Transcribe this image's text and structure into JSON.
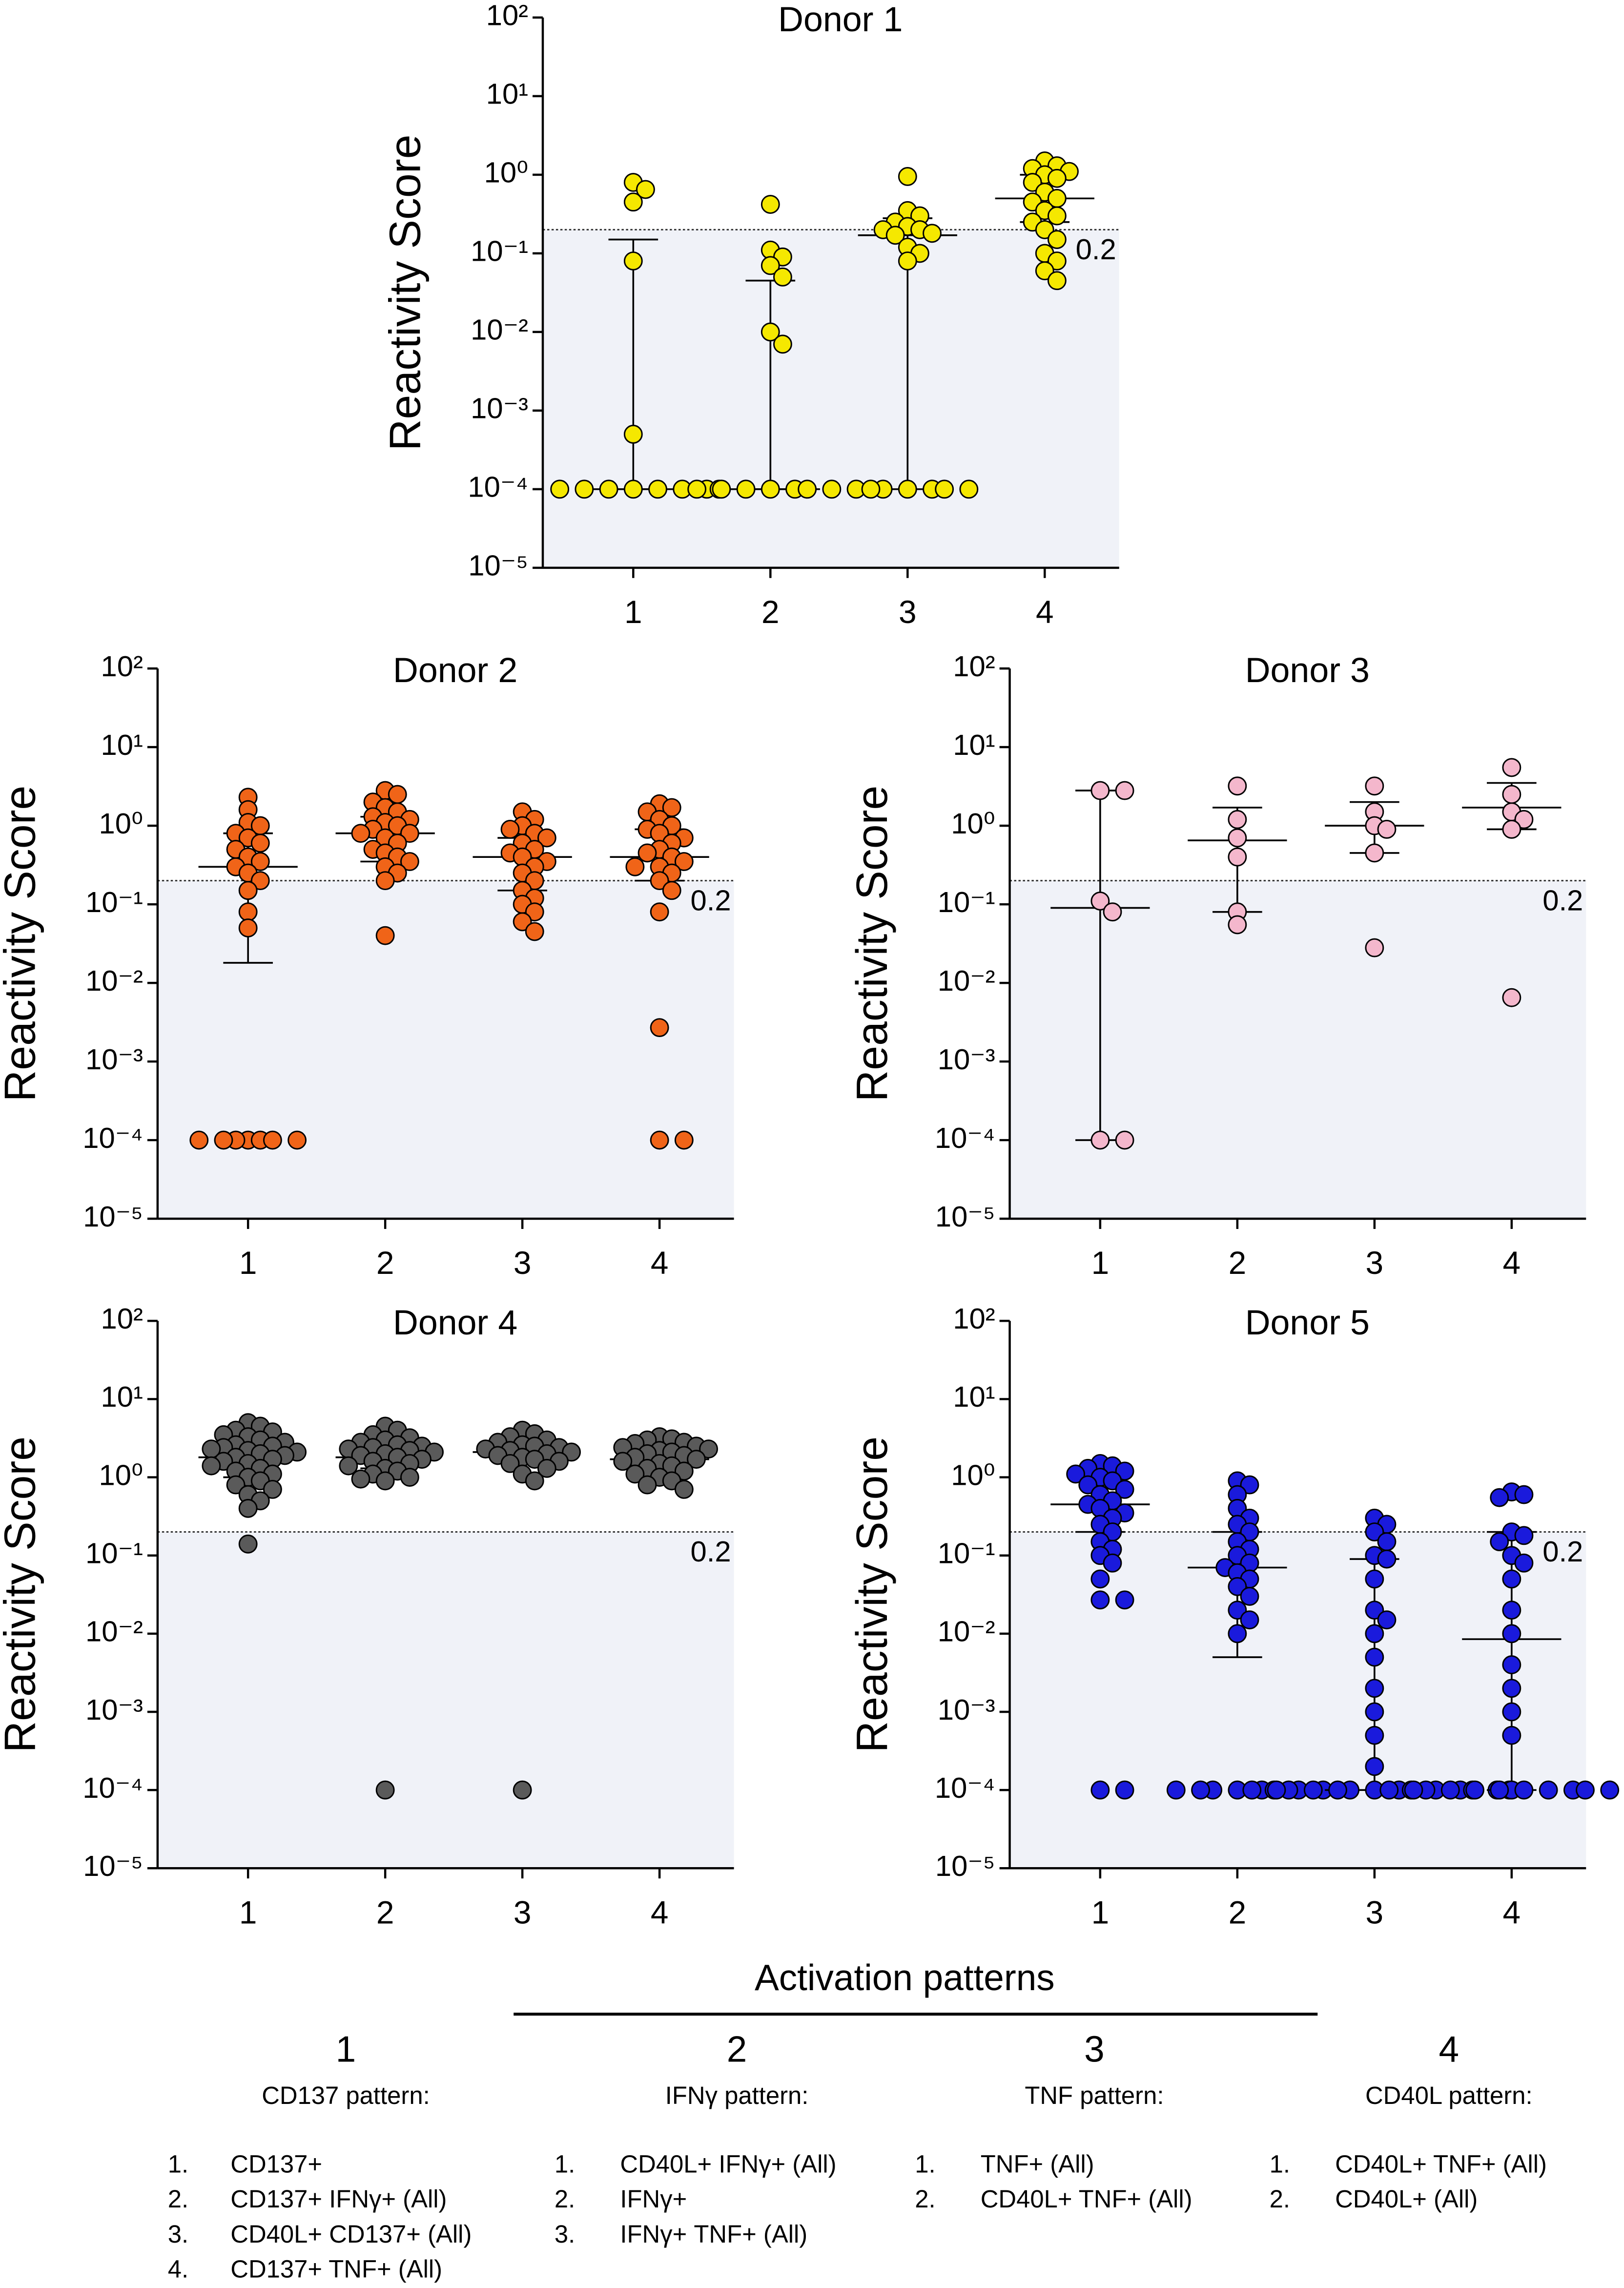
{
  "chart_data": [
    {
      "type": "dotplot",
      "title": "Donor 1",
      "ylabel": "Reactivity Score",
      "log_scale": true,
      "color": "#f5e800",
      "categories": [
        "1",
        "2",
        "3",
        "4"
      ],
      "values": [
        [
          0.8,
          0.65,
          0.45,
          0.08,
          0.0005,
          0.0001,
          0.0001,
          0.0001,
          0.0001,
          0.0001,
          0.0001,
          0.0001,
          0.0001
        ],
        [
          0.42,
          0.11,
          0.09,
          0.07,
          0.05,
          0.01,
          0.007,
          0.0001,
          0.0001,
          0.0001,
          0.0001,
          0.0001,
          0.0001,
          0.0001,
          0.0001
        ],
        [
          0.95,
          0.35,
          0.3,
          0.25,
          0.22,
          0.2,
          0.2,
          0.18,
          0.17,
          0.12,
          0.1,
          0.08,
          0.0001,
          0.0001,
          0.0001,
          0.0001,
          0.0001,
          0.0001
        ],
        [
          1.5,
          1.3,
          1.2,
          1.1,
          1.0,
          0.9,
          0.8,
          0.6,
          0.5,
          0.45,
          0.35,
          0.3,
          0.25,
          0.2,
          0.15,
          0.1,
          0.08,
          0.06,
          0.045
        ]
      ],
      "median": [
        0.0001,
        0.0001,
        0.17,
        0.5
      ],
      "lower": [
        0.0001,
        0.0001,
        0.0001,
        0.25
      ],
      "upper": [
        0.15,
        0.045,
        0.28,
        1.0
      ],
      "threshold": 0.2,
      "ylim": [
        1e-05,
        100
      ],
      "yticks": [
        {
          "value": 1e-05,
          "label": "10⁻⁵"
        },
        {
          "value": 0.0001,
          "label": "10⁻⁴"
        },
        {
          "value": 0.001,
          "label": "10⁻³"
        },
        {
          "value": 0.01,
          "label": "10⁻²"
        },
        {
          "value": 0.1,
          "label": "10⁻¹"
        },
        {
          "value": 1,
          "label": "10⁰"
        },
        {
          "value": 10,
          "label": "10¹"
        },
        {
          "value": 100,
          "label": "10²"
        }
      ]
    },
    {
      "type": "dotplot",
      "title": "Donor 2",
      "ylabel": "Reactivity Score",
      "log_scale": true,
      "color": "#f06418",
      "categories": [
        "1",
        "2",
        "3",
        "4"
      ],
      "values": [
        [
          2.3,
          1.6,
          1.1,
          1.0,
          0.8,
          0.7,
          0.6,
          0.5,
          0.4,
          0.35,
          0.3,
          0.25,
          0.2,
          0.15,
          0.08,
          0.05,
          0.0001,
          0.0001,
          0.0001,
          0.0001,
          0.0001,
          0.0001,
          0.0001
        ],
        [
          2.8,
          2.5,
          2.0,
          1.7,
          1.5,
          1.3,
          1.2,
          1.1,
          1.0,
          0.9,
          0.8,
          0.8,
          0.7,
          0.6,
          0.5,
          0.45,
          0.4,
          0.35,
          0.3,
          0.25,
          0.2,
          0.04
        ],
        [
          1.5,
          1.2,
          1.0,
          0.9,
          0.8,
          0.7,
          0.6,
          0.5,
          0.45,
          0.4,
          0.35,
          0.3,
          0.25,
          0.2,
          0.15,
          0.12,
          0.1,
          0.08,
          0.06,
          0.045
        ],
        [
          1.9,
          1.7,
          1.5,
          1.2,
          1.0,
          0.9,
          0.8,
          0.7,
          0.6,
          0.5,
          0.45,
          0.4,
          0.35,
          0.3,
          0.3,
          0.25,
          0.2,
          0.15,
          0.08,
          0.0027,
          0.0001,
          0.0001
        ]
      ],
      "median": [
        0.3,
        0.8,
        0.4,
        0.4
      ],
      "lower": [
        0.018,
        0.35,
        0.15,
        0.2
      ],
      "upper": [
        0.8,
        1.3,
        0.7,
        0.9
      ],
      "threshold": 0.2,
      "ylim": [
        1e-05,
        100
      ],
      "yticks": [
        {
          "value": 1e-05,
          "label": "10⁻⁵"
        },
        {
          "value": 0.0001,
          "label": "10⁻⁴"
        },
        {
          "value": 0.001,
          "label": "10⁻³"
        },
        {
          "value": 0.01,
          "label": "10⁻²"
        },
        {
          "value": 0.1,
          "label": "10⁻¹"
        },
        {
          "value": 1,
          "label": "10⁰"
        },
        {
          "value": 10,
          "label": "10¹"
        },
        {
          "value": 100,
          "label": "10²"
        }
      ]
    },
    {
      "type": "dotplot",
      "title": "Donor 3",
      "ylabel": "Reactivity Score",
      "log_scale": true,
      "color": "#f4b7cc",
      "categories": [
        "1",
        "2",
        "3",
        "4"
      ],
      "values": [
        [
          2.8,
          2.8,
          0.11,
          0.08,
          0.0001,
          0.0001
        ],
        [
          3.2,
          1.2,
          0.7,
          0.4,
          0.08,
          0.055
        ],
        [
          3.2,
          1.5,
          1.0,
          0.9,
          0.45,
          0.028
        ],
        [
          5.5,
          2.5,
          1.5,
          1.2,
          0.9,
          0.0065
        ]
      ],
      "median": [
        0.09,
        0.65,
        1.0,
        1.7
      ],
      "lower": [
        0.0001,
        0.08,
        0.45,
        0.9
      ],
      "upper": [
        2.8,
        1.7,
        2.0,
        3.5
      ],
      "threshold": 0.2,
      "ylim": [
        1e-05,
        100
      ],
      "yticks": [
        {
          "value": 1e-05,
          "label": "10⁻⁵"
        },
        {
          "value": 0.0001,
          "label": "10⁻⁴"
        },
        {
          "value": 0.001,
          "label": "10⁻³"
        },
        {
          "value": 0.01,
          "label": "10⁻²"
        },
        {
          "value": 0.1,
          "label": "10⁻¹"
        },
        {
          "value": 1,
          "label": "10⁰"
        },
        {
          "value": 10,
          "label": "10¹"
        },
        {
          "value": 100,
          "label": "10²"
        }
      ]
    },
    {
      "type": "dotplot",
      "title": "Donor 4",
      "ylabel": "Reactivity Score",
      "log_scale": true,
      "color": "#5a5a5a",
      "categories": [
        "1",
        "2",
        "3",
        "4"
      ],
      "values": [
        [
          5,
          4.5,
          4,
          3.8,
          3.5,
          3.3,
          3,
          2.8,
          2.6,
          2.5,
          2.4,
          2.3,
          2.2,
          2.1,
          2,
          1.9,
          1.8,
          1.7,
          1.6,
          1.5,
          1.4,
          1.3,
          1.2,
          1.1,
          1,
          0.9,
          0.8,
          0.7,
          0.6,
          0.5,
          0.4,
          0.14
        ],
        [
          4.5,
          4,
          3.5,
          3.2,
          3,
          2.8,
          2.6,
          2.5,
          2.4,
          2.3,
          2.2,
          2.1,
          2,
          1.9,
          1.8,
          1.7,
          1.6,
          1.5,
          1.4,
          1.3,
          1.2,
          1.1,
          1,
          0.95,
          0.9,
          0.0001
        ],
        [
          4,
          3.6,
          3.3,
          3,
          2.8,
          2.6,
          2.5,
          2.4,
          2.3,
          2.2,
          2.1,
          2,
          1.9,
          1.8,
          1.7,
          1.6,
          1.5,
          1.3,
          1.1,
          0.9,
          0.0001
        ],
        [
          3.3,
          3.1,
          3,
          2.8,
          2.7,
          2.5,
          2.4,
          2.3,
          2.2,
          2.1,
          2,
          1.9,
          1.8,
          1.7,
          1.6,
          1.5,
          1.4,
          1.3,
          1.2,
          1.1,
          1,
          0.9,
          0.8,
          0.7
        ]
      ],
      "median": [
        1.8,
        1.8,
        2.1,
        1.7
      ],
      "lower": [
        1.0,
        1.3,
        1.6,
        1.1
      ],
      "upper": [
        3.0,
        2.6,
        2.8,
        2.5
      ],
      "threshold": 0.2,
      "ylim": [
        1e-05,
        100
      ],
      "yticks": [
        {
          "value": 1e-05,
          "label": "10⁻⁵"
        },
        {
          "value": 0.0001,
          "label": "10⁻⁴"
        },
        {
          "value": 0.001,
          "label": "10⁻³"
        },
        {
          "value": 0.01,
          "label": "10⁻²"
        },
        {
          "value": 0.1,
          "label": "10⁻¹"
        },
        {
          "value": 1,
          "label": "10⁰"
        },
        {
          "value": 10,
          "label": "10¹"
        },
        {
          "value": 100,
          "label": "10²"
        }
      ]
    },
    {
      "type": "dotplot",
      "title": "Donor 5",
      "ylabel": "Reactivity Score",
      "log_scale": true,
      "color": "#1a1adc",
      "categories": [
        "1",
        "2",
        "3",
        "4"
      ],
      "values": [
        [
          1.5,
          1.4,
          1.3,
          1.2,
          1.1,
          1.0,
          0.9,
          0.8,
          0.7,
          0.6,
          0.5,
          0.45,
          0.4,
          0.35,
          0.3,
          0.25,
          0.2,
          0.15,
          0.12,
          0.1,
          0.08,
          0.05,
          0.027,
          0.027,
          0.0001,
          0.0001
        ],
        [
          0.9,
          0.8,
          0.6,
          0.4,
          0.3,
          0.25,
          0.2,
          0.15,
          0.12,
          0.1,
          0.08,
          0.07,
          0.06,
          0.05,
          0.04,
          0.03,
          0.02,
          0.015,
          0.01,
          0.0001,
          0.0001,
          0.0001,
          0.0001,
          0.0001,
          0.0001,
          0.0001,
          0.0001
        ],
        [
          0.3,
          0.25,
          0.2,
          0.15,
          0.1,
          0.09,
          0.05,
          0.02,
          0.015,
          0.01,
          0.005,
          0.002,
          0.001,
          0.0005,
          0.0002,
          0.0001,
          0.0001,
          0.0001,
          0.0001,
          0.0001,
          0.0001,
          0.0001,
          0.0001,
          0.0001,
          0.0001,
          0.0001,
          0.0001,
          0.0001,
          0.0001
        ],
        [
          0.65,
          0.6,
          0.55,
          0.2,
          0.18,
          0.15,
          0.1,
          0.08,
          0.05,
          0.02,
          0.01,
          0.004,
          0.002,
          0.001,
          0.0005,
          0.0001,
          0.0001,
          0.0001,
          0.0001,
          0.0001,
          0.0001,
          0.0001,
          0.0001,
          0.0001,
          0.0001,
          0.0001,
          0.0001,
          0.0001,
          0.0001
        ]
      ],
      "median": [
        0.45,
        0.07,
        0.0001,
        0.0085
      ],
      "lower": [
        0.2,
        0.005,
        0.0001,
        0.0001
      ],
      "upper": [
        0.9,
        0.2,
        0.09,
        0.2
      ],
      "threshold": 0.2,
      "ylim": [
        1e-05,
        100
      ],
      "yticks": [
        {
          "value": 1e-05,
          "label": "10⁻⁵"
        },
        {
          "value": 0.0001,
          "label": "10⁻⁴"
        },
        {
          "value": 0.001,
          "label": "10⁻³"
        },
        {
          "value": 0.01,
          "label": "10⁻²"
        },
        {
          "value": 0.1,
          "label": "10⁻¹"
        },
        {
          "value": 1,
          "label": "10⁰"
        },
        {
          "value": 10,
          "label": "10¹"
        },
        {
          "value": 100,
          "label": "10²"
        }
      ]
    }
  ],
  "legend_panel": {
    "title": "Activation patterns",
    "groups": [
      {
        "number": "1",
        "name": "CD137 pattern:",
        "items": [
          {
            "n": "1.",
            "text": "CD137+"
          },
          {
            "n": "2.",
            "text": "CD137+ IFNγ+ (All)"
          },
          {
            "n": "3.",
            "text": "CD40L+ CD137+ (All)"
          },
          {
            "n": "4.",
            "text": "CD137+ TNF+ (All)"
          }
        ]
      },
      {
        "number": "2",
        "name": "IFNγ pattern:",
        "items": [
          {
            "n": "1.",
            "text": "CD40L+ IFNγ+ (All)"
          },
          {
            "n": "2.",
            "text": "IFNγ+"
          },
          {
            "n": "3.",
            "text": "IFNγ+ TNF+ (All)"
          }
        ]
      },
      {
        "number": "3",
        "name": "TNF pattern:",
        "items": [
          {
            "n": "1.",
            "text": "TNF+ (All)"
          },
          {
            "n": "2.",
            "text": "CD40L+ TNF+ (All)"
          }
        ]
      },
      {
        "number": "4",
        "name": "CD40L pattern:",
        "items": [
          {
            "n": "1.",
            "text": "CD40L+ TNF+ (All)"
          },
          {
            "n": "2.",
            "text": "CD40L+ (All)"
          }
        ]
      }
    ]
  }
}
